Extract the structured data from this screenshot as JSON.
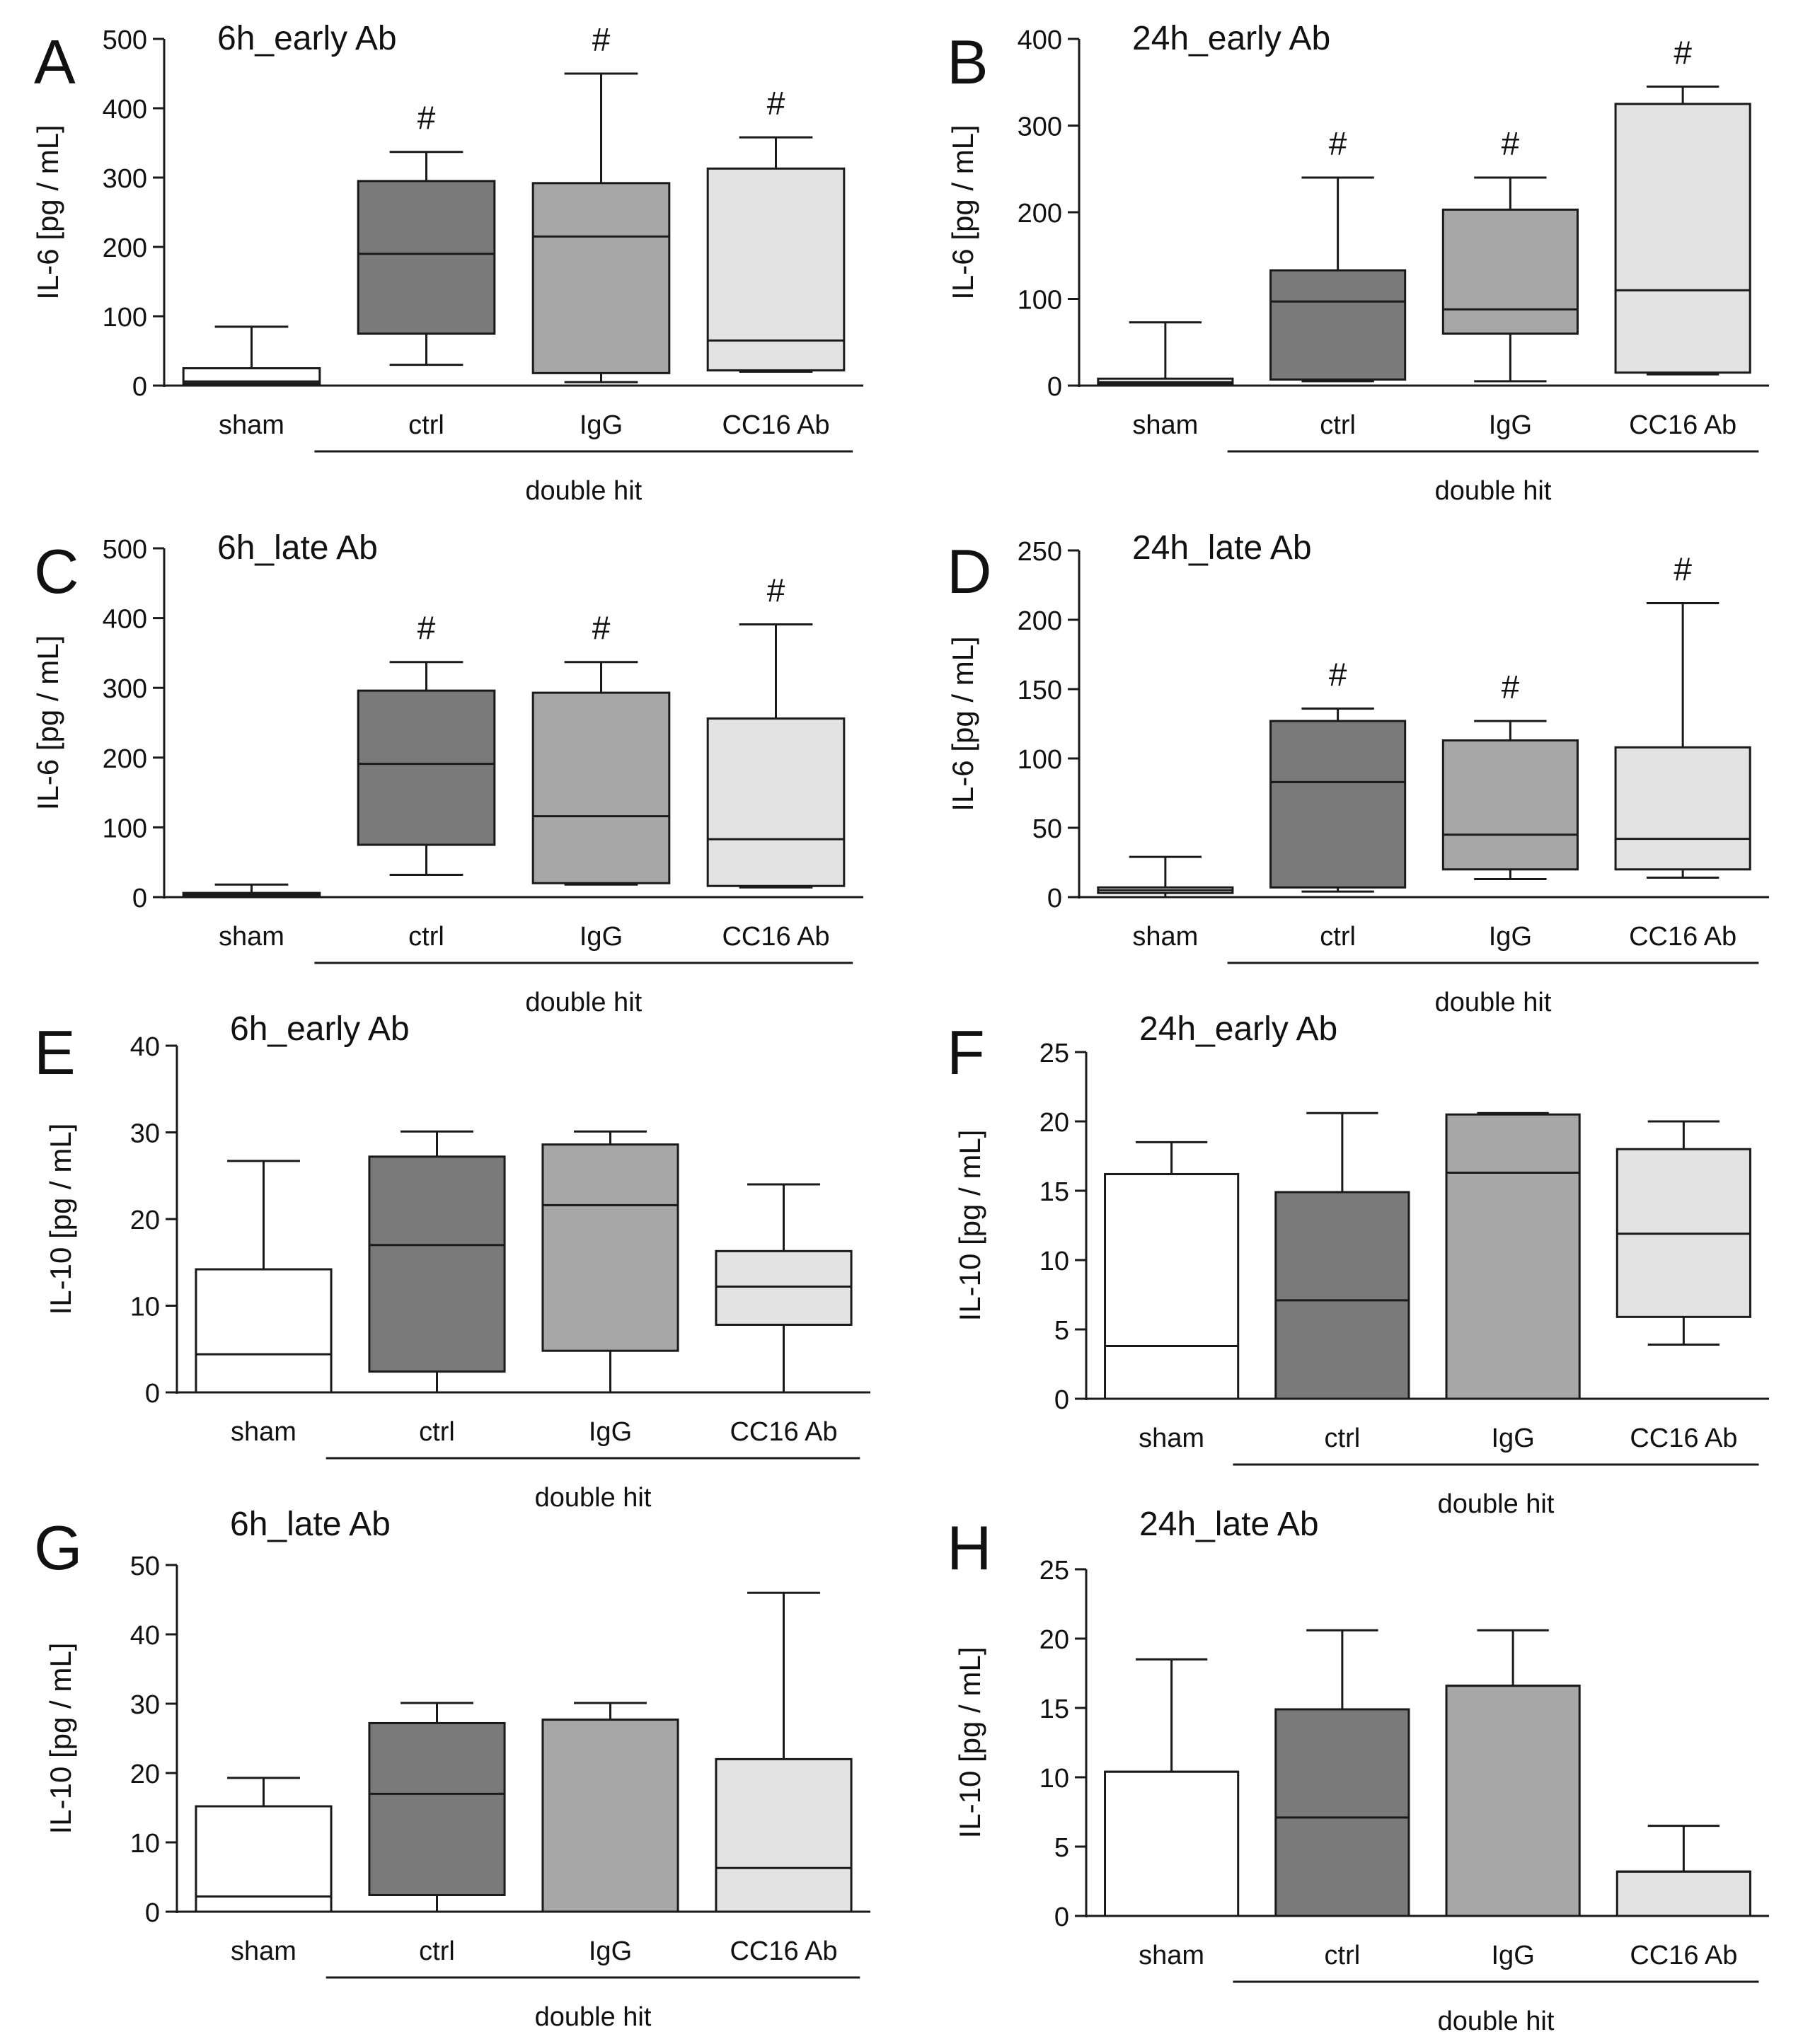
{
  "figure": {
    "group_label": "double hit",
    "categories": [
      "sham",
      "ctrl",
      "IgG",
      "CC16 Ab"
    ],
    "significance_marker": "#"
  },
  "colors": {
    "sham": "#ffffff",
    "ctrl": "#7a7a7a",
    "IgG": "#a7a7a7",
    "CC16 Ab": "#e3e3e3",
    "stroke": "#1a1a1a"
  },
  "chart_data": [
    {
      "panel": "A",
      "type": "box",
      "title": "6h_early Ab",
      "ylabel": "IL-6 [pg / mL]",
      "categories": [
        "sham",
        "ctrl",
        "IgG",
        "CC16 Ab"
      ],
      "ylim": [
        0,
        500
      ],
      "yticks": [
        0,
        100,
        200,
        300,
        400,
        500
      ],
      "boxes": [
        {
          "category": "sham",
          "min": 0,
          "q1": 3,
          "median": 6,
          "q3": 25,
          "max": 85,
          "marker": ""
        },
        {
          "category": "ctrl",
          "min": 30,
          "q1": 75,
          "median": 190,
          "q3": 295,
          "max": 337,
          "marker": "#"
        },
        {
          "category": "IgG",
          "min": 5,
          "q1": 18,
          "median": 215,
          "q3": 292,
          "max": 450,
          "marker": "#"
        },
        {
          "category": "CC16 Ab",
          "min": 20,
          "q1": 22,
          "median": 65,
          "q3": 313,
          "max": 358,
          "marker": "#"
        }
      ],
      "group_label": "double hit"
    },
    {
      "panel": "B",
      "type": "box",
      "title": "24h_early Ab",
      "ylabel": "IL-6 [pg / mL]",
      "categories": [
        "sham",
        "ctrl",
        "IgG",
        "CC16 Ab"
      ],
      "ylim": [
        0,
        400
      ],
      "yticks": [
        0,
        100,
        200,
        300,
        400
      ],
      "boxes": [
        {
          "category": "sham",
          "min": 0,
          "q1": 2,
          "median": 4,
          "q3": 8,
          "max": 73,
          "marker": ""
        },
        {
          "category": "ctrl",
          "min": 5,
          "q1": 7,
          "median": 97,
          "q3": 133,
          "max": 240,
          "marker": "#"
        },
        {
          "category": "IgG",
          "min": 5,
          "q1": 60,
          "median": 88,
          "q3": 203,
          "max": 240,
          "marker": "#"
        },
        {
          "category": "CC16 Ab",
          "min": 13,
          "q1": 15,
          "median": 110,
          "q3": 325,
          "max": 345,
          "marker": "#"
        }
      ],
      "group_label": "double hit"
    },
    {
      "panel": "C",
      "type": "box",
      "title": "6h_late Ab",
      "ylabel": "IL-6 [pg / mL]",
      "categories": [
        "sham",
        "ctrl",
        "IgG",
        "CC16 Ab"
      ],
      "ylim": [
        0,
        500
      ],
      "yticks": [
        0,
        100,
        200,
        300,
        400,
        500
      ],
      "boxes": [
        {
          "category": "sham",
          "min": 0,
          "q1": 2,
          "median": 4,
          "q3": 6,
          "max": 18,
          "marker": ""
        },
        {
          "category": "ctrl",
          "min": 32,
          "q1": 75,
          "median": 191,
          "q3": 296,
          "max": 337,
          "marker": "#"
        },
        {
          "category": "IgG",
          "min": 18,
          "q1": 20,
          "median": 116,
          "q3": 293,
          "max": 337,
          "marker": "#"
        },
        {
          "category": "CC16 Ab",
          "min": 14,
          "q1": 16,
          "median": 83,
          "q3": 256,
          "max": 391,
          "marker": "#"
        }
      ],
      "group_label": "double hit"
    },
    {
      "panel": "D",
      "type": "box",
      "title": "24h_late Ab",
      "ylabel": "IL-6 [pg / mL]",
      "categories": [
        "sham",
        "ctrl",
        "IgG",
        "CC16 Ab"
      ],
      "ylim": [
        0,
        250
      ],
      "yticks": [
        0,
        50,
        100,
        150,
        200,
        250
      ],
      "boxes": [
        {
          "category": "sham",
          "min": 0,
          "q1": 3,
          "median": 5,
          "q3": 7,
          "max": 29,
          "marker": ""
        },
        {
          "category": "ctrl",
          "min": 4,
          "q1": 7,
          "median": 83,
          "q3": 127,
          "max": 136,
          "marker": "#"
        },
        {
          "category": "IgG",
          "min": 13,
          "q1": 20,
          "median": 45,
          "q3": 113,
          "max": 127,
          "marker": "#"
        },
        {
          "category": "CC16 Ab",
          "min": 14,
          "q1": 20,
          "median": 42,
          "q3": 108,
          "max": 212,
          "marker": "#"
        }
      ],
      "group_label": "double hit"
    },
    {
      "panel": "E",
      "type": "box",
      "title": "6h_early Ab",
      "ylabel": "IL-10 [pg / mL]",
      "categories": [
        "sham",
        "ctrl",
        "IgG",
        "CC16 Ab"
      ],
      "ylim": [
        0,
        40
      ],
      "yticks": [
        0,
        10,
        20,
        30,
        40
      ],
      "boxes": [
        {
          "category": "sham",
          "min": 0,
          "q1": 0,
          "median": 4.4,
          "q3": 14.2,
          "max": 26.7,
          "marker": ""
        },
        {
          "category": "ctrl",
          "min": 0,
          "q1": 2.4,
          "median": 17,
          "q3": 27.2,
          "max": 30.1,
          "marker": ""
        },
        {
          "category": "IgG",
          "min": 0,
          "q1": 4.8,
          "median": 21.6,
          "q3": 28.6,
          "max": 30.1,
          "marker": ""
        },
        {
          "category": "CC16 Ab",
          "min": 0,
          "q1": 7.8,
          "median": 12.2,
          "q3": 16.3,
          "max": 24,
          "marker": ""
        }
      ],
      "group_label": "double hit"
    },
    {
      "panel": "F",
      "type": "box",
      "title": "24h_early Ab",
      "ylabel": "IL-10 [pg / mL]",
      "categories": [
        "sham",
        "ctrl",
        "IgG",
        "CC16 Ab"
      ],
      "ylim": [
        0,
        25
      ],
      "yticks": [
        0,
        5,
        10,
        15,
        20,
        25
      ],
      "boxes": [
        {
          "category": "sham",
          "min": 0,
          "q1": 0,
          "median": 3.8,
          "q3": 16.2,
          "max": 18.5,
          "marker": ""
        },
        {
          "category": "ctrl",
          "min": 0,
          "q1": 0,
          "median": 7.1,
          "q3": 14.9,
          "max": 20.6,
          "marker": ""
        },
        {
          "category": "IgG",
          "min": 0,
          "q1": 0,
          "median": 16.3,
          "q3": 20.5,
          "max": 20.6,
          "marker": ""
        },
        {
          "category": "CC16 Ab",
          "min": 3.9,
          "q1": 5.9,
          "median": 11.9,
          "q3": 18,
          "max": 20,
          "marker": ""
        }
      ],
      "group_label": "double hit"
    },
    {
      "panel": "G",
      "type": "box",
      "title": "6h_late Ab",
      "ylabel": "IL-10 [pg / mL]",
      "categories": [
        "sham",
        "ctrl",
        "IgG",
        "CC16 Ab"
      ],
      "ylim": [
        0,
        50
      ],
      "yticks": [
        0,
        10,
        20,
        30,
        40,
        50
      ],
      "boxes": [
        {
          "category": "sham",
          "min": 0,
          "q1": 0,
          "median": 2.2,
          "q3": 15.2,
          "max": 19.3,
          "marker": ""
        },
        {
          "category": "ctrl",
          "min": 0,
          "q1": 2.4,
          "median": 17,
          "q3": 27.2,
          "max": 30.1,
          "marker": ""
        },
        {
          "category": "IgG",
          "min": 0,
          "q1": 0,
          "median": 27.7,
          "q3": 27.7,
          "max": 30.1,
          "marker": ""
        },
        {
          "category": "CC16 Ab",
          "min": 0,
          "q1": 0,
          "median": 6.3,
          "q3": 22,
          "max": 46,
          "marker": ""
        }
      ],
      "group_label": "double hit"
    },
    {
      "panel": "H",
      "type": "box",
      "title": "24h_late Ab",
      "ylabel": "IL-10 [pg / mL]",
      "categories": [
        "sham",
        "ctrl",
        "IgG",
        "CC16 Ab"
      ],
      "ylim": [
        0,
        25
      ],
      "yticks": [
        0,
        5,
        10,
        15,
        20,
        25
      ],
      "boxes": [
        {
          "category": "sham",
          "min": 0,
          "q1": 0,
          "median": 10.4,
          "q3": 10.4,
          "max": 18.5,
          "marker": ""
        },
        {
          "category": "ctrl",
          "min": 0,
          "q1": 0,
          "median": 7.1,
          "q3": 14.9,
          "max": 20.6,
          "marker": ""
        },
        {
          "category": "IgG",
          "min": 0,
          "q1": 0,
          "median": 16.6,
          "q3": 16.6,
          "max": 20.6,
          "marker": ""
        },
        {
          "category": "CC16 Ab",
          "min": 0,
          "q1": 0,
          "median": 3.2,
          "q3": 3.2,
          "max": 6.5,
          "marker": ""
        }
      ],
      "group_label": "double hit"
    }
  ]
}
